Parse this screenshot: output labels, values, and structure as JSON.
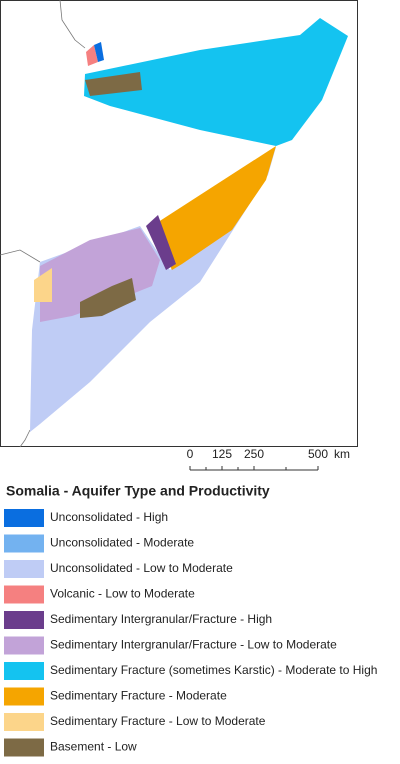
{
  "map": {
    "scale_bar": {
      "ticks": [
        0,
        125,
        250,
        500
      ],
      "unit": "km"
    },
    "legend": {
      "title": "Somalia - Aquifer Type and Productivity",
      "items": [
        {
          "label": "Unconsolidated - High",
          "color": "#0a6ee0"
        },
        {
          "label": "Unconsolidated - Moderate",
          "color": "#73b2f0"
        },
        {
          "label": "Unconsolidated - Low to Moderate",
          "color": "#bfccf5"
        },
        {
          "label": "Volcanic - Low to Moderate",
          "color": "#f58080"
        },
        {
          "label": "Sedimentary Intergranular/Fracture - High",
          "color": "#6b3d8c"
        },
        {
          "label": "Sedimentary Intergranular/Fracture - Low to Moderate",
          "color": "#c2a3d8"
        },
        {
          "label": "Sedimentary Fracture (sometimes Karstic) - Moderate to High",
          "color": "#14c3f0"
        },
        {
          "label": "Sedimentary Fracture - Moderate",
          "color": "#f5a500"
        },
        {
          "label": "Sedimentary Fracture - Low to Moderate",
          "color": "#fcd58a"
        },
        {
          "label": "Basement - Low",
          "color": "#7d6a45"
        }
      ]
    }
  }
}
